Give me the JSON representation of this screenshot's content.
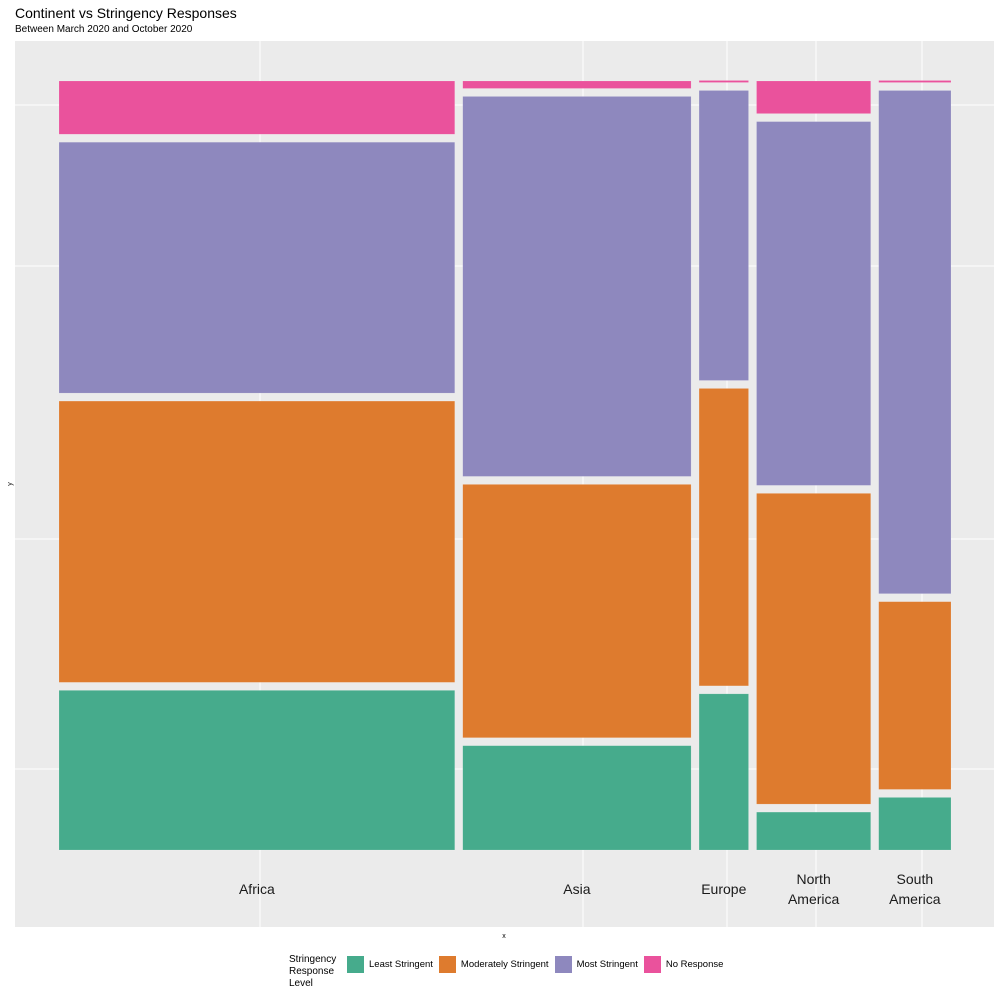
{
  "chart_data": {
    "type": "mosaic",
    "title": "Continent vs Stringency Responses",
    "subtitle": "Between March 2020 and October 2020",
    "xlabel": "x",
    "ylabel": "y",
    "grid": true,
    "legend_position": "bottom",
    "legend": {
      "title": "Stringency\nResponse\nLevel",
      "entries": [
        "Least Stringent",
        "Moderately Stringent",
        "Most Stringent",
        "No Response"
      ]
    },
    "colors": {
      "Least Stringent": "#46ab8c",
      "Moderately Stringent": "#de7b2e",
      "Most Stringent": "#8e88be",
      "No Response": "#ea529c"
    },
    "categories": [
      "Africa",
      "Asia",
      "Europe",
      "North\nAmerica",
      "South\nAmerica"
    ],
    "category_widths": [
      0.52,
      0.3,
      0.065,
      0.15,
      0.095
    ],
    "series": [
      {
        "name": "Least Stringent",
        "values": [
          0.21,
          0.14,
          0.21,
          0.05,
          0.07
        ]
      },
      {
        "name": "Moderately Stringent",
        "values": [
          0.37,
          0.34,
          0.4,
          0.41,
          0.25
        ]
      },
      {
        "name": "Most Stringent",
        "values": [
          0.33,
          0.51,
          0.39,
          0.48,
          0.67
        ]
      },
      {
        "name": "No Response",
        "values": [
          0.07,
          0.01,
          0.002,
          0.043,
          0.002
        ]
      }
    ]
  }
}
